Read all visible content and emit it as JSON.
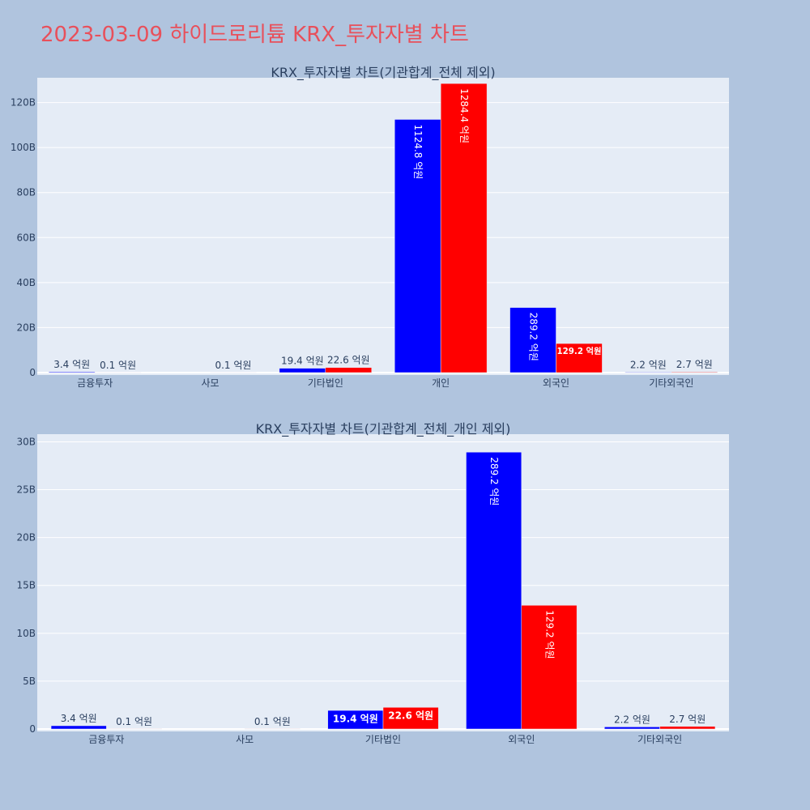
{
  "page": {
    "title": "2023-03-09 하이드로리튬 KRX_투자자별 차트"
  },
  "colors": {
    "background": "#b0c4de",
    "plot_bg": "#e5ecf6",
    "title": "#e8505b",
    "series_blue": "#0000ff",
    "series_red": "#ff0000"
  },
  "chart_data": [
    {
      "type": "bar",
      "title": "KRX_투자자별 차트(기관합계_전체 제외)",
      "categories": [
        "금융투자",
        "사모",
        "기타법인",
        "개인",
        "외국인",
        "기타외국인"
      ],
      "series": [
        {
          "color": "#0000ff",
          "values": [
            0.34,
            0,
            1.94,
            112.48,
            28.92,
            0.22
          ],
          "labels": [
            "3.4 억원",
            "",
            "19.4 억원",
            "1124.8 억원",
            "289.2 억원",
            "2.2 억원"
          ]
        },
        {
          "color": "#ff0000",
          "values": [
            0.01,
            0.01,
            2.26,
            128.44,
            12.92,
            0.27
          ],
          "labels": [
            "0.1 억원",
            "0.1 억원",
            "22.6 억원",
            "1284.4 억원",
            "129.2 억원",
            "2.7 억원"
          ]
        }
      ],
      "yticks": [
        0,
        20,
        40,
        60,
        80,
        100,
        120
      ],
      "ytick_labels": [
        "0",
        "20B",
        "40B",
        "60B",
        "80B",
        "100B",
        "120B"
      ],
      "ylim": [
        0,
        131
      ],
      "grid": true,
      "legend": "none"
    },
    {
      "type": "bar",
      "title": "KRX_투자자별 차트(기관합계_전체_개인 제외)",
      "categories": [
        "금융투자",
        "사모",
        "기타법인",
        "외국인",
        "기타외국인"
      ],
      "series": [
        {
          "color": "#0000ff",
          "values": [
            0.34,
            0,
            1.94,
            28.92,
            0.22
          ],
          "labels": [
            "3.4 억원",
            "",
            "19.4 억원",
            "289.2 억원",
            "2.2 억원"
          ]
        },
        {
          "color": "#ff0000",
          "values": [
            0.01,
            0.01,
            2.26,
            12.92,
            0.27
          ],
          "labels": [
            "0.1 억원",
            "0.1 억원",
            "22.6 억원",
            "129.2 억원",
            "2.7 억원"
          ]
        }
      ],
      "yticks": [
        0,
        5,
        10,
        15,
        20,
        25,
        30
      ],
      "ytick_labels": [
        "0",
        "5B",
        "10B",
        "15B",
        "20B",
        "25B",
        "30B"
      ],
      "ylim": [
        0,
        30.8
      ],
      "grid": true,
      "legend": "none"
    }
  ]
}
